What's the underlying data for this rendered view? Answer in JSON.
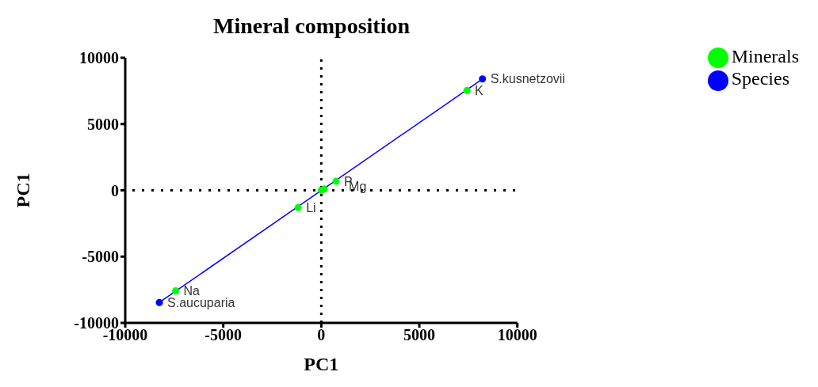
{
  "chart_data": {
    "type": "scatter",
    "title": "Mineral composition",
    "xlabel": "PC1",
    "ylabel": "PC1",
    "xlim": [
      -10000,
      10000
    ],
    "xticks": [
      -10000,
      -5000,
      0,
      5000,
      10000
    ],
    "ylim": [
      -10000,
      10000
    ],
    "yticks": [
      -10000,
      -5000,
      0,
      5000,
      10000
    ],
    "grid": false,
    "legend": "top right",
    "marker": "circle",
    "series": [
      {
        "type": "line",
        "color": "#0000ff",
        "x": [
          -8260,
          8220
        ],
        "values": [
          -8460,
          8400
        ],
        "marker": "none",
        "line_style": "solid"
      },
      {
        "name": "Minerals",
        "color": "#00ff00",
        "x": [
          7430,
          -7430,
          -1180,
          750,
          0,
          150
        ],
        "values": [
          7530,
          -7590,
          -1300,
          680,
          0,
          100
        ]
      },
      {
        "name": "Species",
        "color": "#0000ff",
        "x": [
          8220,
          -8260
        ],
        "values": [
          8400,
          -8460
        ]
      }
    ],
    "ref_lines": [
      {
        "axis": "x",
        "value": 0,
        "line_style": "dotted",
        "color": "#000000"
      },
      {
        "axis": "y",
        "value": 0,
        "line_style": "dotted",
        "color": "#000000"
      }
    ],
    "annotations": [
      {
        "text": "K",
        "x": 7430,
        "y": 7530
      },
      {
        "text": "Na",
        "x": -7430,
        "y": -7590
      },
      {
        "text": "Li",
        "x": -1180,
        "y": -1300
      },
      {
        "text": "P",
        "x": 750,
        "y": 680
      },
      {
        "text": "Mg",
        "x": 1000,
        "y": 300
      },
      {
        "text": "S.kusnetzovii",
        "x": 8220,
        "y": 8400
      },
      {
        "text": "S.aucuparia",
        "x": -8260,
        "y": -8460
      }
    ]
  }
}
